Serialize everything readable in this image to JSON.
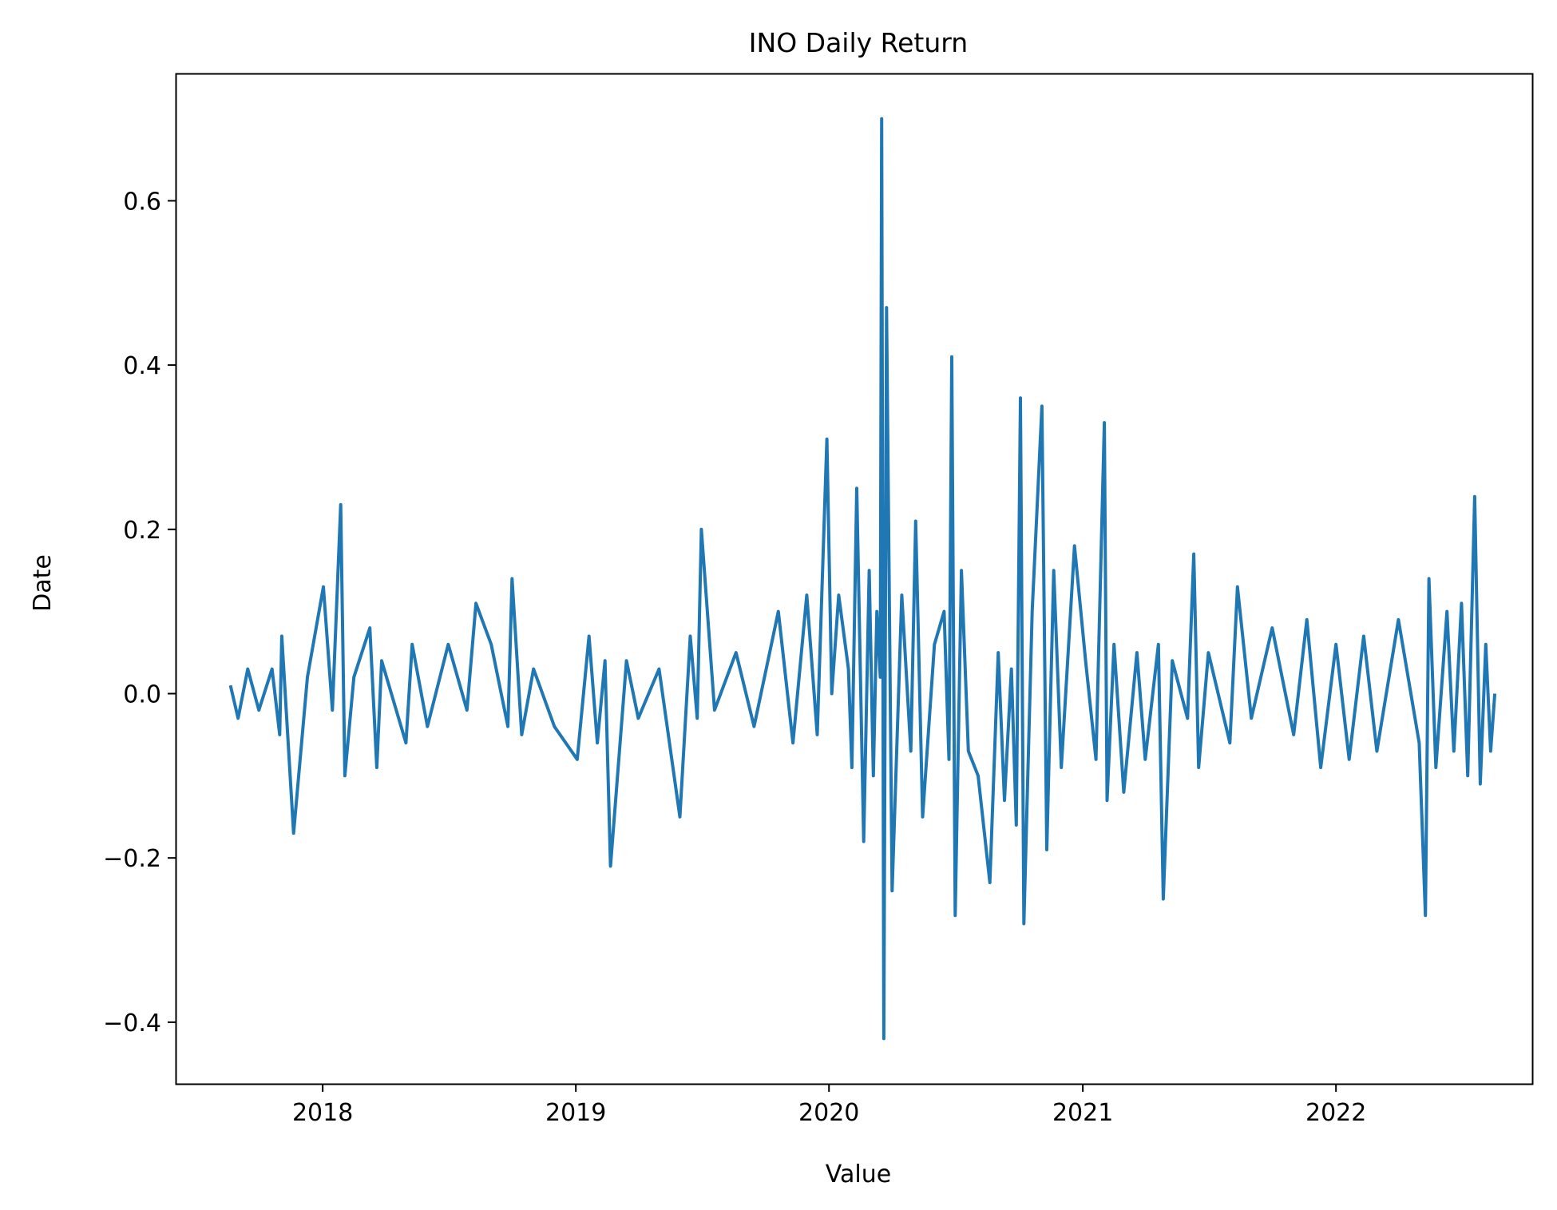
{
  "chart_data": {
    "type": "line",
    "title": "INO Daily Return",
    "xlabel": "Value",
    "ylabel": "Date",
    "x_tick_labels": [
      "2018",
      "2019",
      "2020",
      "2021",
      "2022"
    ],
    "y_tick_labels": [
      "−0.4",
      "−0.2",
      "0.0",
      "0.2",
      "0.4",
      "0.6"
    ],
    "y_ticks": [
      -0.4,
      -0.2,
      0.0,
      0.2,
      0.4,
      0.6
    ],
    "xlim": [
      "2017-06-03",
      "2022-10-11"
    ],
    "ylim": [
      -0.475,
      0.755
    ],
    "grid": false,
    "series_color": "#1f77b4",
    "series": [
      {
        "x": [
          "2017-08-21",
          "2017-09-01",
          "2017-09-15",
          "2017-10-01",
          "2017-10-20",
          "2017-10-31",
          "2017-11-03",
          "2017-11-20",
          "2017-12-10",
          "2018-01-02",
          "2018-01-15",
          "2018-01-27",
          "2018-02-02",
          "2018-02-15",
          "2018-03-10",
          "2018-03-20",
          "2018-03-27",
          "2018-05-01",
          "2018-05-10",
          "2018-06-01",
          "2018-07-01",
          "2018-07-28",
          "2018-08-10",
          "2018-09-01",
          "2018-09-25",
          "2018-10-01",
          "2018-10-15",
          "2018-11-01",
          "2018-12-01",
          "2019-01-03",
          "2019-01-20",
          "2019-02-01",
          "2019-02-12",
          "2019-02-20",
          "2019-03-15",
          "2019-04-01",
          "2019-05-01",
          "2019-05-31",
          "2019-06-15",
          "2019-06-25",
          "2019-07-01",
          "2019-07-20",
          "2019-08-20",
          "2019-09-15",
          "2019-10-20",
          "2019-11-10",
          "2019-11-30",
          "2019-12-15",
          "2019-12-29",
          "2020-01-05",
          "2020-01-15",
          "2020-01-29",
          "2020-02-03",
          "2020-02-10",
          "2020-02-20",
          "2020-02-28",
          "2020-03-05",
          "2020-03-10",
          "2020-03-15",
          "2020-03-17",
          "2020-03-20",
          "2020-03-24",
          "2020-04-01",
          "2020-04-15",
          "2020-04-28",
          "2020-05-05",
          "2020-05-15",
          "2020-06-01",
          "2020-06-15",
          "2020-06-22",
          "2020-06-26",
          "2020-07-01",
          "2020-07-10",
          "2020-07-20",
          "2020-08-03",
          "2020-08-20",
          "2020-09-01",
          "2020-09-10",
          "2020-09-20",
          "2020-09-27",
          "2020-10-03",
          "2020-10-08",
          "2020-10-20",
          "2020-11-03",
          "2020-11-10",
          "2020-11-20",
          "2020-12-01",
          "2020-12-20",
          "2021-01-05",
          "2021-01-20",
          "2021-02-01",
          "2021-02-05",
          "2021-02-15",
          "2021-03-01",
          "2021-03-20",
          "2021-04-01",
          "2021-04-20",
          "2021-04-27",
          "2021-05-10",
          "2021-06-01",
          "2021-06-10",
          "2021-06-17",
          "2021-07-01",
          "2021-08-01",
          "2021-08-12",
          "2021-09-01",
          "2021-10-01",
          "2021-11-01",
          "2021-11-20",
          "2021-12-10",
          "2022-01-01",
          "2022-01-20",
          "2022-02-10",
          "2022-03-01",
          "2022-04-01",
          "2022-05-01",
          "2022-05-10",
          "2022-05-15",
          "2022-05-25",
          "2022-06-10",
          "2022-06-20",
          "2022-07-01",
          "2022-07-10",
          "2022-07-20",
          "2022-07-28",
          "2022-08-05",
          "2022-08-12",
          "2022-08-18"
        ],
        "values": [
          0.01,
          -0.03,
          0.03,
          -0.02,
          0.03,
          -0.05,
          0.07,
          -0.17,
          0.02,
          0.13,
          -0.02,
          0.23,
          -0.1,
          0.02,
          0.08,
          -0.09,
          0.04,
          -0.06,
          0.06,
          -0.04,
          0.06,
          -0.02,
          0.11,
          0.06,
          -0.04,
          0.14,
          -0.05,
          0.03,
          -0.04,
          -0.08,
          0.07,
          -0.06,
          0.04,
          -0.21,
          0.04,
          -0.03,
          0.03,
          -0.15,
          0.07,
          -0.03,
          0.2,
          -0.02,
          0.05,
          -0.04,
          0.1,
          -0.06,
          0.12,
          -0.05,
          0.31,
          0.0,
          0.12,
          0.03,
          -0.09,
          0.25,
          -0.18,
          0.15,
          -0.1,
          0.1,
          0.02,
          0.7,
          -0.42,
          0.47,
          -0.24,
          0.12,
          -0.07,
          0.21,
          -0.15,
          0.06,
          0.1,
          -0.08,
          0.41,
          -0.27,
          0.15,
          -0.07,
          -0.1,
          -0.23,
          0.05,
          -0.13,
          0.03,
          -0.16,
          0.36,
          -0.28,
          0.1,
          0.35,
          -0.19,
          0.15,
          -0.09,
          0.18,
          0.04,
          -0.08,
          0.33,
          -0.13,
          0.06,
          -0.12,
          0.05,
          -0.08,
          0.06,
          -0.25,
          0.04,
          -0.03,
          0.17,
          -0.09,
          0.05,
          -0.06,
          0.13,
          -0.03,
          0.08,
          -0.05,
          0.09,
          -0.09,
          0.06,
          -0.08,
          0.07,
          -0.07,
          0.09,
          -0.06,
          -0.27,
          0.14,
          -0.09,
          0.1,
          -0.07,
          0.11,
          -0.1,
          0.24,
          -0.11,
          0.06,
          -0.07,
          0.0
        ]
      }
    ]
  }
}
